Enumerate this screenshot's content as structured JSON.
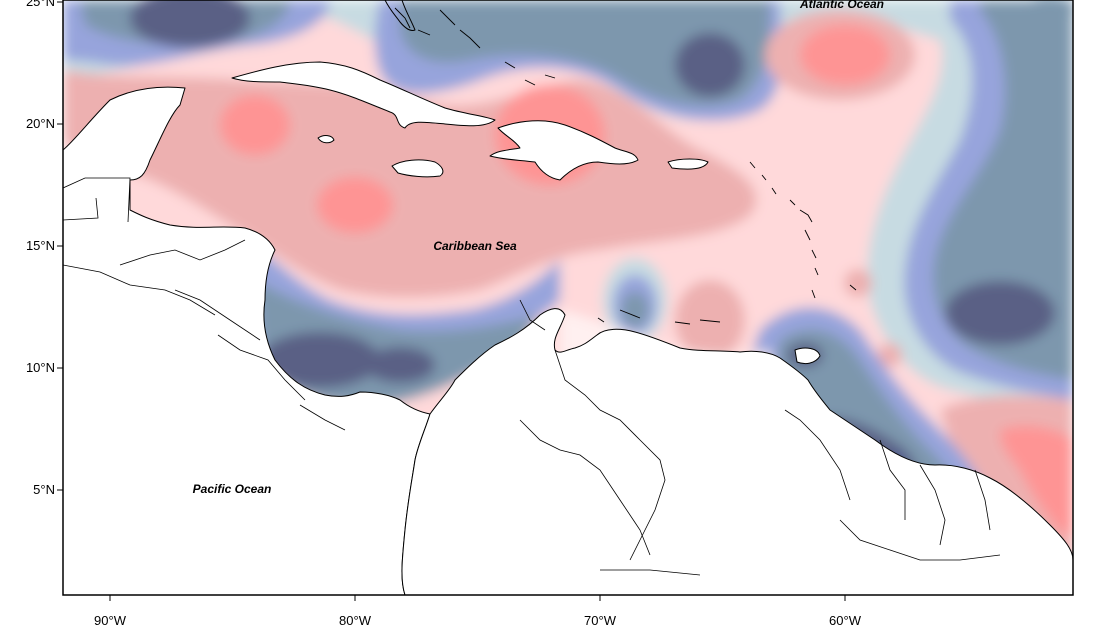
{
  "map": {
    "labels": {
      "atlantic": "Atlantic Ocean",
      "caribbean": "Caribbean Sea",
      "pacific": "Pacific Ocean"
    },
    "lat_ticks": [
      "25°N",
      "20°N",
      "15°N",
      "10°N",
      "5°N"
    ],
    "lon_ticks": [
      "90°W",
      "80°W",
      "70°W",
      "60°W"
    ],
    "palette": {
      "strong_negative": "#5a6185",
      "negative": "#7d97ad",
      "mild_negative": "#97a4dc",
      "weak_negative": "#c7dbe2",
      "neutral": "#fff0f0",
      "weak_positive": "#ffd9da",
      "positive": "#edb0b0",
      "strong_positive": "#fe9494",
      "land": "#ffffff",
      "coastline": "#000000"
    }
  }
}
